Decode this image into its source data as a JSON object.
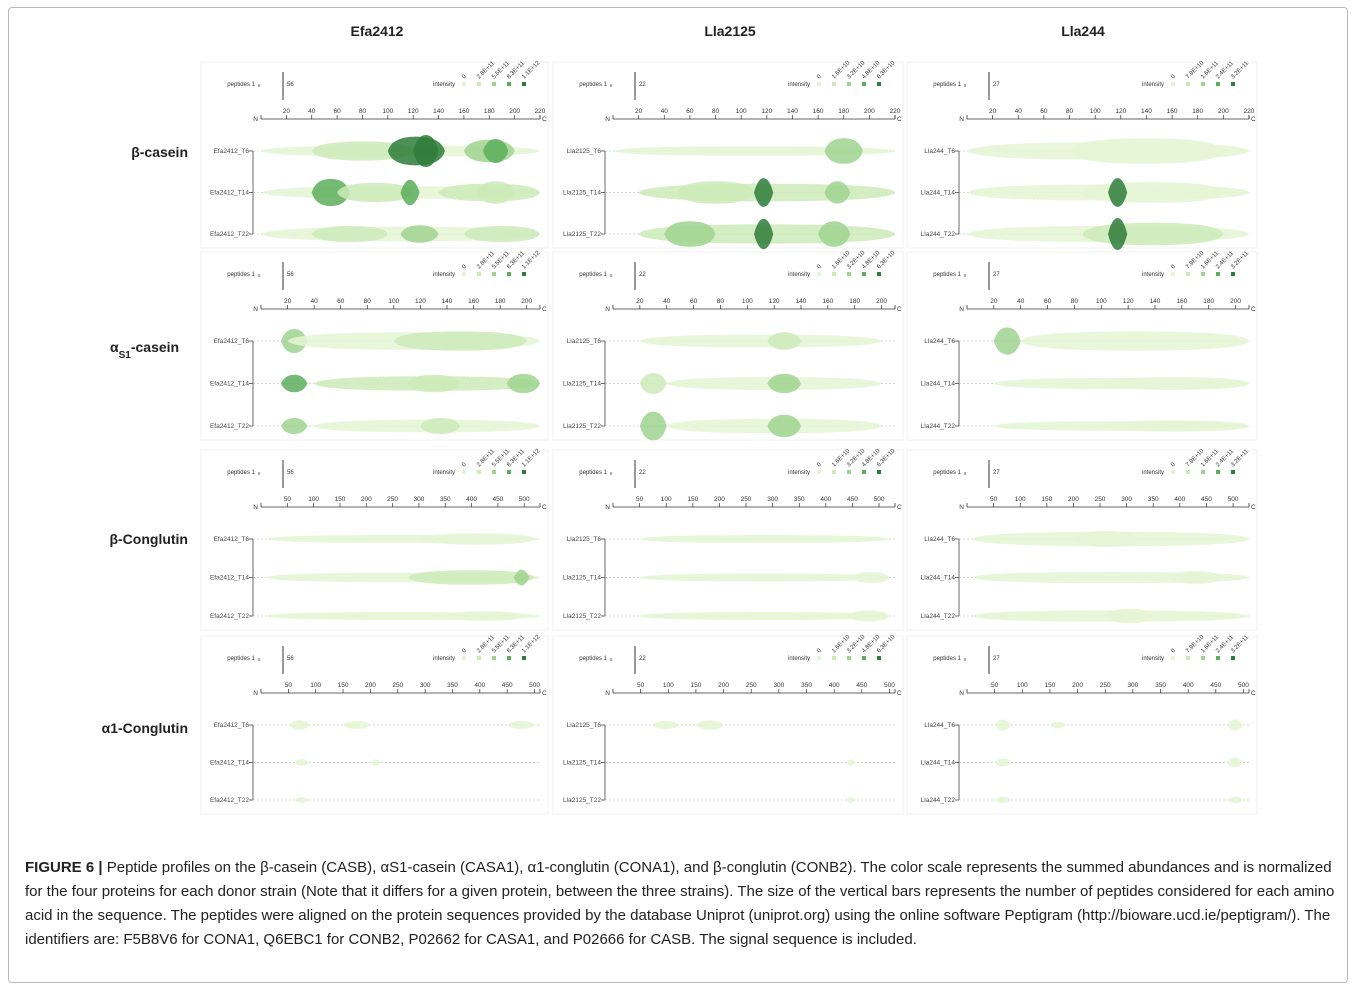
{
  "columns": [
    "Efa2412",
    "Lla2125",
    "Lla244"
  ],
  "rows": [
    {
      "id": "bcas",
      "label": "β-casein",
      "axis_max": 220,
      "ticks": [
        20,
        40,
        60,
        80,
        100,
        120,
        140,
        160,
        180,
        200,
        220
      ]
    },
    {
      "id": "acas",
      "label_main": "α",
      "label_sub": "S1",
      "label_rest": "-casein",
      "axis_max": 210,
      "ticks": [
        20,
        40,
        60,
        80,
        100,
        120,
        140,
        160,
        180,
        200
      ]
    },
    {
      "id": "bcon",
      "label": "β-Conglutin",
      "axis_max": 530,
      "ticks": [
        50,
        100,
        150,
        200,
        250,
        300,
        350,
        400,
        450,
        500
      ]
    },
    {
      "id": "acon",
      "label": "α1-Conglutin",
      "axis_max": 510,
      "ticks": [
        50,
        100,
        150,
        200,
        250,
        300,
        350,
        400,
        450,
        500
      ]
    }
  ],
  "panel_text": {
    "peptides": "peptides 1",
    "intensity": "intensity",
    "n_label": "N",
    "c_label": "C"
  },
  "strains": [
    {
      "name": "Efa2412",
      "peptide_max": "56",
      "scale": [
        "0",
        "2.8E+11",
        "5.5E+11",
        "8.3E+11",
        "1.1E+12"
      ],
      "tracks": [
        "Efa2412_T6",
        "Efa2412_T14",
        "Efa2412_T22"
      ]
    },
    {
      "name": "Lla2125",
      "peptide_max": "22",
      "scale": [
        "0",
        "1.6E+10",
        "3.2E+10",
        "4.8E+10",
        "6.3E+10"
      ],
      "tracks": [
        "Lla2125_T6",
        "Lla2125_T14",
        "Lla2125_T22"
      ]
    },
    {
      "name": "Lla244",
      "peptide_max": "27",
      "scale": [
        "0",
        "7.9E+10",
        "1.6E+11",
        "2.4E+11",
        "3.2E+11"
      ],
      "tracks": [
        "Lla244_T6",
        "Lla244_T14",
        "Lla244_T22"
      ]
    }
  ],
  "colors": {
    "pale": "#e4f4d4",
    "light": "#cdeab8",
    "mid": "#9fd38f",
    "strong": "#5cae5c",
    "dark": "#2e7d3a",
    "frame": "#b9b9b9"
  },
  "profiles": {
    "bcas": [
      [
        [
          [
            1,
            220,
            0.35,
            0.12
          ],
          [
            40,
            120,
            0.6,
            0.3
          ],
          [
            100,
            145,
            0.9,
            1.0
          ],
          [
            120,
            140,
            1.0,
            0.95
          ],
          [
            160,
            200,
            0.7,
            0.45
          ],
          [
            175,
            195,
            0.75,
            0.7
          ]
        ],
        [
          [
            1,
            220,
            0.4,
            0.1
          ],
          [
            40,
            70,
            0.85,
            0.8
          ],
          [
            60,
            120,
            0.6,
            0.3
          ],
          [
            110,
            125,
            0.8,
            0.85
          ],
          [
            140,
            220,
            0.55,
            0.2
          ],
          [
            170,
            200,
            0.7,
            0.4
          ]
        ],
        [
          [
            1,
            220,
            0.45,
            0.12
          ],
          [
            40,
            100,
            0.5,
            0.25
          ],
          [
            110,
            140,
            0.55,
            0.5
          ],
          [
            160,
            220,
            0.5,
            0.2
          ]
        ]
      ],
      [
        [
          [
            1,
            220,
            0.3,
            0.08
          ],
          [
            165,
            195,
            0.8,
            0.6
          ]
        ],
        [
          [
            20,
            220,
            0.55,
            0.2
          ],
          [
            50,
            110,
            0.7,
            0.35
          ],
          [
            110,
            125,
            0.9,
            1.0
          ],
          [
            165,
            185,
            0.7,
            0.45
          ]
        ],
        [
          [
            20,
            220,
            0.6,
            0.2
          ],
          [
            40,
            80,
            0.8,
            0.5
          ],
          [
            110,
            125,
            0.95,
            1.0
          ],
          [
            160,
            185,
            0.8,
            0.55
          ]
        ]
      ],
      [
        [
          [
            1,
            220,
            0.55,
            0.1
          ],
          [
            80,
            200,
            0.8,
            0.15
          ]
        ],
        [
          [
            1,
            220,
            0.5,
            0.1
          ],
          [
            90,
            200,
            0.65,
            0.15
          ],
          [
            110,
            125,
            0.9,
            0.9
          ]
        ],
        [
          [
            1,
            220,
            0.5,
            0.12
          ],
          [
            90,
            200,
            0.7,
            0.2
          ],
          [
            110,
            125,
            1.0,
            1.0
          ]
        ]
      ]
    ],
    "acas": [
      [
        [
          [
            15,
            35,
            0.75,
            0.6
          ],
          [
            20,
            210,
            0.55,
            0.15
          ],
          [
            100,
            200,
            0.6,
            0.2
          ]
        ],
        [
          [
            15,
            35,
            0.55,
            0.7
          ],
          [
            40,
            210,
            0.45,
            0.2
          ],
          [
            110,
            150,
            0.55,
            0.35
          ],
          [
            185,
            210,
            0.6,
            0.6
          ]
        ],
        [
          [
            15,
            35,
            0.5,
            0.5
          ],
          [
            40,
            210,
            0.4,
            0.15
          ],
          [
            120,
            150,
            0.5,
            0.3
          ]
        ]
      ],
      [
        [
          [
            20,
            200,
            0.4,
            0.1
          ],
          [
            115,
            140,
            0.55,
            0.4
          ]
        ],
        [
          [
            20,
            40,
            0.65,
            0.35
          ],
          [
            40,
            200,
            0.4,
            0.1
          ],
          [
            115,
            140,
            0.6,
            0.45
          ]
        ],
        [
          [
            20,
            40,
            0.9,
            0.6
          ],
          [
            40,
            200,
            0.45,
            0.12
          ],
          [
            115,
            140,
            0.7,
            0.45
          ]
        ]
      ],
      [
        [
          [
            20,
            40,
            0.85,
            0.5
          ],
          [
            40,
            210,
            0.6,
            0.1
          ]
        ],
        [
          [
            20,
            210,
            0.35,
            0.05
          ],
          [
            100,
            210,
            0.4,
            0.08
          ]
        ],
        [
          [
            20,
            210,
            0.3,
            0.05
          ],
          [
            100,
            210,
            0.35,
            0.08
          ]
        ]
      ]
    ],
    "bcon": [
      [
        [
          [
            10,
            530,
            0.25,
            0.08
          ],
          [
            300,
            520,
            0.35,
            0.12
          ]
        ],
        [
          [
            10,
            530,
            0.3,
            0.08
          ],
          [
            280,
            520,
            0.45,
            0.2
          ],
          [
            480,
            510,
            0.5,
            0.5
          ]
        ],
        [
          [
            10,
            530,
            0.25,
            0.06
          ],
          [
            350,
            500,
            0.3,
            0.1
          ]
        ]
      ],
      [
        [
          [
            50,
            520,
            0.25,
            0.06
          ]
        ],
        [
          [
            50,
            520,
            0.25,
            0.06
          ],
          [
            450,
            520,
            0.35,
            0.12
          ]
        ],
        [
          [
            50,
            520,
            0.25,
            0.06
          ],
          [
            440,
            520,
            0.35,
            0.12
          ]
        ]
      ],
      [
        [
          [
            10,
            530,
            0.45,
            0.1
          ],
          [
            200,
            320,
            0.5,
            0.12
          ]
        ],
        [
          [
            10,
            530,
            0.35,
            0.08
          ],
          [
            380,
            480,
            0.4,
            0.12
          ]
        ],
        [
          [
            10,
            530,
            0.35,
            0.08
          ],
          [
            260,
            350,
            0.45,
            0.12
          ]
        ]
      ]
    ],
    "acon": [
      [
        [
          [
            50,
            90,
            0.3,
            0.1
          ],
          [
            150,
            200,
            0.25,
            0.06
          ],
          [
            450,
            500,
            0.25,
            0.08
          ]
        ],
        [
          [
            60,
            90,
            0.2,
            0.06
          ],
          [
            200,
            220,
            0.2,
            0.05
          ]
        ],
        [
          [
            60,
            90,
            0.18,
            0.05
          ]
        ]
      ],
      [
        [
          [
            70,
            120,
            0.25,
            0.06
          ],
          [
            150,
            200,
            0.3,
            0.1
          ]
        ],
        [
          [
            420,
            440,
            0.2,
            0.05
          ]
        ],
        [
          [
            420,
            440,
            0.2,
            0.05
          ]
        ]
      ],
      [
        [
          [
            50,
            80,
            0.35,
            0.12
          ],
          [
            150,
            180,
            0.2,
            0.06
          ],
          [
            470,
            500,
            0.35,
            0.12
          ]
        ],
        [
          [
            50,
            80,
            0.25,
            0.06
          ],
          [
            470,
            500,
            0.3,
            0.08
          ]
        ],
        [
          [
            50,
            80,
            0.2,
            0.06
          ],
          [
            470,
            500,
            0.2,
            0.06
          ]
        ]
      ]
    ]
  },
  "caption": {
    "lead": "FIGURE 6 |",
    "text": "Peptide profiles on the β-casein (CASB), αS1-casein (CASA1), α1-conglutin (CONA1), and β-conglutin (CONB2). The color scale represents the summed abundances and is normalized for the four proteins for each donor strain (Note that it differs for a given protein, between the three strains). The size of the vertical bars represents the number of peptides considered for each amino acid in the sequence. The peptides were aligned on the protein sequences provided by the database Uniprot (uniprot.org) using the online software Peptigram (http://bioware.ucd.ie/peptigram/). The identifiers are: F5B8V6 for CONA1, Q6EBC1 for CONB2, P02662 for CASA1, and P02666 for CASB. The signal sequence is included."
  }
}
